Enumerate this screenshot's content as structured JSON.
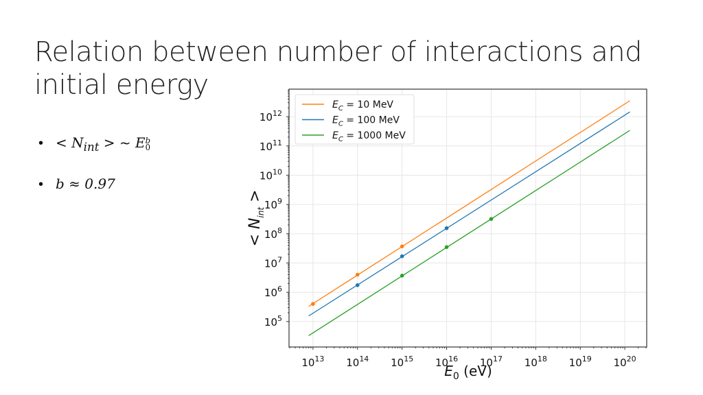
{
  "slide": {
    "title": "Relation between number of interactions and initial energy",
    "bullets": [
      {
        "lhs": "< N",
        "lhs_sub": "int",
        "rel": "> ~ E",
        "rel_sub": "0",
        "rel_sup": "b"
      },
      {
        "text": "b ≈ 0.97"
      }
    ]
  },
  "chart_data": {
    "type": "line",
    "xlabel": "E0 (eV)",
    "ylabel": "< Nint >",
    "xscale": "log",
    "yscale": "log",
    "xlim": [
      2900000000000.0,
      3.1e+20
    ],
    "ylim": [
      13500.0,
      8700000000000.0
    ],
    "grid": true,
    "legend_position": "top-left",
    "x_ticks": [
      "10^13",
      "10^14",
      "10^15",
      "10^16",
      "10^17",
      "10^18",
      "10^19",
      "10^20"
    ],
    "y_ticks": [
      "10^5",
      "10^6",
      "10^7",
      "10^8",
      "10^9",
      "10^10",
      "10^11",
      "10^12"
    ],
    "series": [
      {
        "name": "E_C = 10 MeV",
        "color": "#ff7f0e",
        "line": {
          "x": [
            8000000000000.0,
            1.3e+20
          ],
          "y": [
            330000.0,
            3500000000000.0
          ]
        },
        "points": {
          "x": [
            10000000000000.0,
            100000000000000.0,
            1000000000000000.0
          ],
          "y": [
            400000.0,
            4000000.0,
            37000000.0
          ]
        }
      },
      {
        "name": "E_C = 100 MeV",
        "color": "#1f77b4",
        "line": {
          "x": [
            8000000000000.0,
            1.3e+20
          ],
          "y": [
            155000.0,
            1450000000000.0
          ]
        },
        "points": {
          "x": [
            100000000000000.0,
            1000000000000000.0,
            1e+16
          ],
          "y": [
            1750000.0,
            17000000.0,
            155000000.0
          ]
        }
      },
      {
        "name": "E_C = 1000 MeV",
        "color": "#2ca02c",
        "line": {
          "x": [
            8000000000000.0,
            1.3e+20
          ],
          "y": [
            33000.0,
            340000000000.0
          ]
        },
        "points": {
          "x": [
            1000000000000000.0,
            1e+16,
            1e+17
          ],
          "y": [
            3700000.0,
            35000000.0,
            320000000.0
          ]
        }
      }
    ]
  }
}
